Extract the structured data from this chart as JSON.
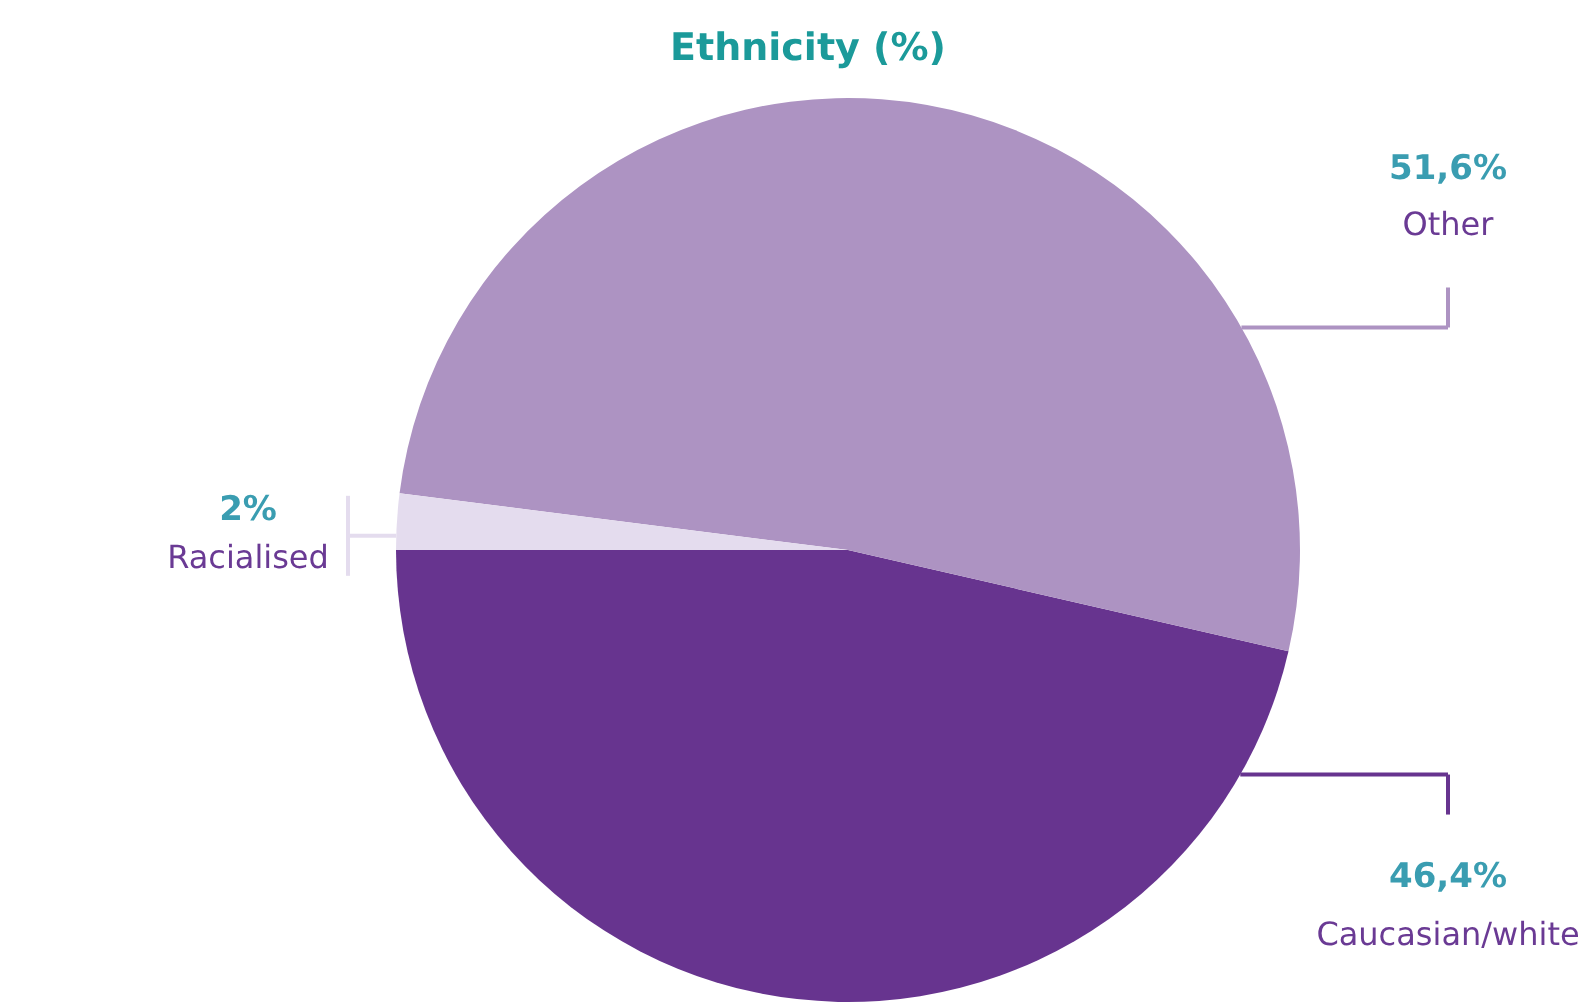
{
  "chart_data": {
    "type": "pie",
    "title": "Ethnicity (%)",
    "categories": [
      "Caucasian/white",
      "Other",
      "Racialised"
    ],
    "values": [
      46.4,
      51.6,
      2
    ],
    "value_labels": [
      "46,4%",
      "51,6%",
      "2%"
    ],
    "colors": [
      "#67348f",
      "#ad93c2",
      "#e4dcee"
    ],
    "legend": false
  }
}
